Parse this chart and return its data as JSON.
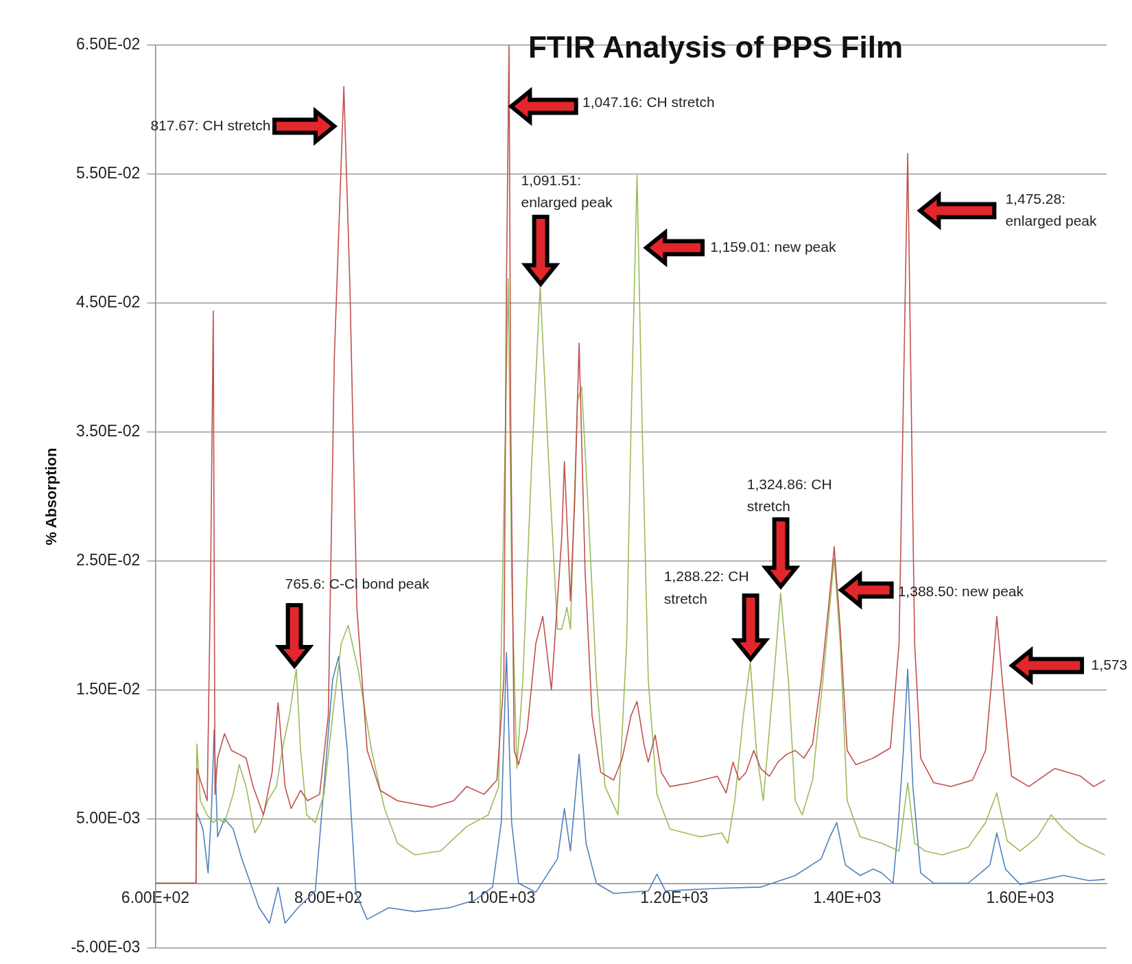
{
  "chart_data": {
    "type": "line",
    "title": "FTIR Analysis of PPS Film",
    "ylabel": "% Absorption",
    "xlim": [
      600,
      1700
    ],
    "xticks": [
      {
        "value": 600,
        "label": "6.00E+02"
      },
      {
        "value": 800,
        "label": "8.00E+02"
      },
      {
        "value": 1000,
        "label": "1.00E+03"
      },
      {
        "value": 1200,
        "label": "1.20E+03"
      },
      {
        "value": 1400,
        "label": "1.40E+03"
      },
      {
        "value": 1600,
        "label": "1.60E+03"
      }
    ],
    "ylim": [
      -0.005,
      0.065
    ],
    "yticks": [
      {
        "value": -0.005,
        "label": "-5.00E-03"
      },
      {
        "value": 0.005,
        "label": "5.00E-03"
      },
      {
        "value": 0.015,
        "label": "1.50E-02"
      },
      {
        "value": 0.025,
        "label": "2.50E-02"
      },
      {
        "value": 0.035,
        "label": "3.50E-02"
      },
      {
        "value": 0.045,
        "label": "4.50E-02"
      },
      {
        "value": 0.055,
        "label": "5.50E-02"
      },
      {
        "value": 0.065,
        "label": "6.50E-02"
      }
    ],
    "grid": "y",
    "legend": false,
    "marker": "none",
    "series": [
      {
        "color": "#c0504d",
        "x": [
          600,
          647,
          648,
          652,
          660,
          664,
          667,
          669,
          672,
          680,
          688,
          697,
          705,
          713,
          725,
          735,
          742,
          750,
          757,
          768,
          776,
          790,
          800,
          807,
          818,
          825,
          833,
          845,
          860,
          880,
          920,
          945,
          960,
          980,
          995,
          1003,
          1006,
          1009,
          1011,
          1015,
          1020,
          1030,
          1040,
          1048,
          1058,
          1070,
          1073,
          1080,
          1085,
          1090,
          1097,
          1105,
          1115,
          1130,
          1140,
          1150,
          1157,
          1165,
          1170,
          1178,
          1185,
          1195,
          1220,
          1250,
          1260,
          1268,
          1275,
          1283,
          1292,
          1300,
          1310,
          1320,
          1330,
          1340,
          1350,
          1360,
          1370,
          1380,
          1385,
          1392,
          1400,
          1410,
          1430,
          1450,
          1460,
          1470,
          1478,
          1485,
          1500,
          1520,
          1545,
          1560,
          1568,
          1573,
          1580,
          1590,
          1610,
          1640,
          1670,
          1685,
          1698
        ],
        "values": [
          0,
          0,
          0.0089,
          0.008,
          0.0064,
          0.0241,
          0.0444,
          0.0069,
          0.0097,
          0.0116,
          0.0103,
          0.01,
          0.0097,
          0.0075,
          0.0053,
          0.0086,
          0.014,
          0.0075,
          0.0058,
          0.0072,
          0.0064,
          0.0069,
          0.013,
          0.0408,
          0.0618,
          0.0463,
          0.0214,
          0.0103,
          0.0072,
          0.0064,
          0.0059,
          0.0064,
          0.0075,
          0.0069,
          0.008,
          0.0158,
          0.0463,
          0.065,
          0.0352,
          0.0103,
          0.0092,
          0.0119,
          0.0186,
          0.0207,
          0.015,
          0.0269,
          0.0327,
          0.0219,
          0.0297,
          0.0419,
          0.0241,
          0.013,
          0.0086,
          0.008,
          0.0097,
          0.013,
          0.0141,
          0.0108,
          0.0094,
          0.0115,
          0.0086,
          0.0075,
          0.0078,
          0.0083,
          0.007,
          0.0094,
          0.008,
          0.0086,
          0.0103,
          0.0089,
          0.0083,
          0.0094,
          0.01,
          0.0103,
          0.0097,
          0.0108,
          0.0158,
          0.0225,
          0.0261,
          0.0197,
          0.0103,
          0.0092,
          0.0097,
          0.0105,
          0.0186,
          0.0566,
          0.0186,
          0.0097,
          0.0078,
          0.0075,
          0.008,
          0.0103,
          0.0164,
          0.0207,
          0.0153,
          0.0083,
          0.0075,
          0.0089,
          0.0083,
          0.0075,
          0.008
        ]
      },
      {
        "color": "#9bbb59",
        "x": [
          600,
          647,
          648,
          652,
          660,
          667,
          672,
          680,
          690,
          697,
          705,
          715,
          722,
          730,
          740,
          748,
          755,
          763,
          768,
          775,
          785,
          795,
          805,
          815,
          823,
          835,
          850,
          865,
          880,
          900,
          930,
          960,
          985,
          997,
          1004,
          1008,
          1012,
          1018,
          1025,
          1035,
          1045,
          1055,
          1065,
          1070,
          1076,
          1080,
          1088,
          1093,
          1100,
          1110,
          1120,
          1135,
          1145,
          1150,
          1157,
          1163,
          1170,
          1180,
          1195,
          1230,
          1255,
          1262,
          1270,
          1280,
          1288,
          1295,
          1303,
          1315,
          1323,
          1332,
          1340,
          1348,
          1360,
          1372,
          1385,
          1392,
          1400,
          1415,
          1440,
          1460,
          1470,
          1478,
          1490,
          1510,
          1540,
          1560,
          1573,
          1585,
          1600,
          1620,
          1636,
          1650,
          1670,
          1698
        ],
        "values": [
          0,
          0,
          0.0108,
          0.0064,
          0.0053,
          0.0047,
          0.005,
          0.0047,
          0.0069,
          0.0092,
          0.0075,
          0.0039,
          0.0047,
          0.0064,
          0.0075,
          0.0108,
          0.013,
          0.0166,
          0.0103,
          0.0053,
          0.0047,
          0.0069,
          0.013,
          0.0186,
          0.02,
          0.0164,
          0.0103,
          0.0058,
          0.0031,
          0.0022,
          0.0025,
          0.0044,
          0.0053,
          0.0075,
          0.0324,
          0.0469,
          0.0241,
          0.0089,
          0.0158,
          0.0324,
          0.0463,
          0.0324,
          0.0197,
          0.0197,
          0.0214,
          0.0197,
          0.0374,
          0.0385,
          0.0297,
          0.0158,
          0.0075,
          0.0053,
          0.0186,
          0.0352,
          0.0549,
          0.0352,
          0.0158,
          0.0069,
          0.0042,
          0.0036,
          0.0039,
          0.0031,
          0.0064,
          0.013,
          0.0172,
          0.0103,
          0.0064,
          0.0158,
          0.0225,
          0.0158,
          0.0064,
          0.0053,
          0.008,
          0.0158,
          0.0252,
          0.0186,
          0.0064,
          0.0036,
          0.0031,
          0.0025,
          0.0078,
          0.0031,
          0.0025,
          0.0022,
          0.0028,
          0.0047,
          0.007,
          0.0033,
          0.0025,
          0.0036,
          0.0053,
          0.0042,
          0.0031,
          0.0022
        ]
      },
      {
        "color": "#4f81bd",
        "x": [
          600,
          647,
          648,
          655,
          661,
          665,
          668,
          672,
          680,
          690,
          700,
          720,
          732,
          742,
          750,
          765,
          785,
          795,
          805,
          812,
          822,
          832,
          845,
          870,
          900,
          940,
          970,
          990,
          1000,
          1006,
          1012,
          1020,
          1040,
          1065,
          1073,
          1080,
          1090,
          1098,
          1110,
          1130,
          1170,
          1180,
          1190,
          1250,
          1300,
          1340,
          1370,
          1380,
          1388,
          1398,
          1415,
          1430,
          1440,
          1453,
          1458,
          1465,
          1470,
          1476,
          1485,
          1500,
          1540,
          1565,
          1573,
          1583,
          1600,
          1650,
          1680,
          1698
        ],
        "values": [
          0,
          0,
          0.0055,
          0.0042,
          0.0008,
          0.0058,
          0.0119,
          0.0036,
          0.005,
          0.0042,
          0.0019,
          -0.0019,
          -0.0031,
          -0.0003,
          -0.0031,
          -0.0019,
          -0.0006,
          0.0075,
          0.0158,
          0.0176,
          0.0103,
          -0.0008,
          -0.0028,
          -0.0019,
          -0.0022,
          -0.0019,
          -0.0013,
          -0.0003,
          0.0047,
          0.0179,
          0.0047,
          0,
          -0.0007,
          0.0019,
          0.0058,
          0.0025,
          0.01,
          0.0031,
          0,
          -0.0008,
          -0.0006,
          0.0007,
          -0.0006,
          -0.0004,
          -0.0003,
          0.0006,
          0.0019,
          0.0036,
          0.0047,
          0.0014,
          0.0006,
          0.0011,
          0.0008,
          0,
          0.0036,
          0.0103,
          0.0166,
          0.0075,
          0.0008,
          0,
          0,
          0.0014,
          0.0039,
          0.0011,
          -0.0001,
          0.0006,
          0.0002,
          0.0003
        ]
      }
    ],
    "annotations": [
      "817.67: CH stretch",
      "1,047.16: CH stretch",
      "1,091.51: enlarged peak",
      "1,159.01: new peak",
      "1,475.28: enlarged peak",
      "765.6: C-Cl bond peak",
      "1,288.22: CH stretch",
      "1,324.86: CH stretch",
      "1,388.50: new peak",
      "1,573"
    ]
  }
}
